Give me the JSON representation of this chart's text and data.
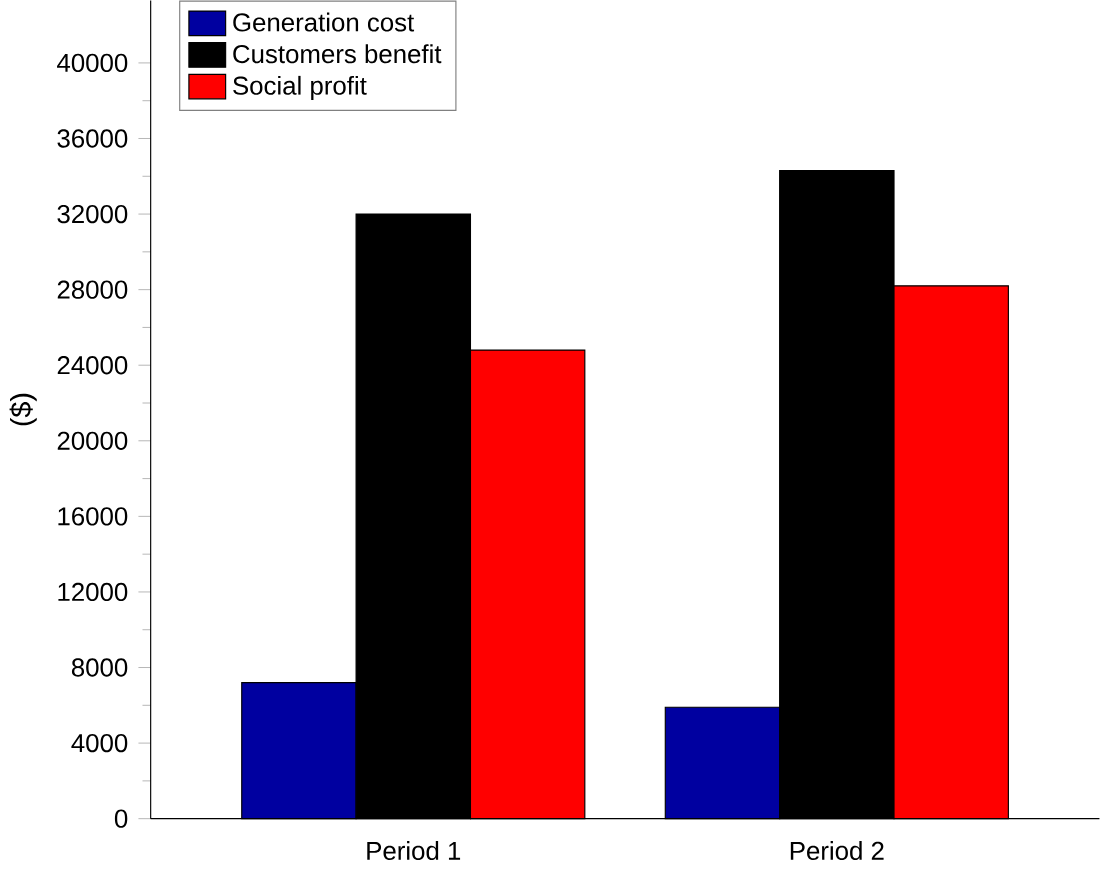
{
  "chart_data": {
    "type": "bar",
    "ylabel": "($)",
    "categories": [
      "Period 1",
      "Period 2"
    ],
    "series": [
      {
        "name": "Generation cost",
        "color": "#0000a0",
        "values": [
          7200,
          5900
        ]
      },
      {
        "name": "Customers benefit",
        "color": "#000000",
        "values": [
          32000,
          34300
        ]
      },
      {
        "name": "Social profit",
        "color": "#ff0000",
        "values": [
          24800,
          28200
        ]
      }
    ],
    "ylim": [
      0,
      43300
    ],
    "yticks": [
      0,
      4000,
      8000,
      12000,
      16000,
      20000,
      24000,
      28000,
      32000,
      36000,
      40000
    ],
    "legend": "top left",
    "grid": false
  }
}
